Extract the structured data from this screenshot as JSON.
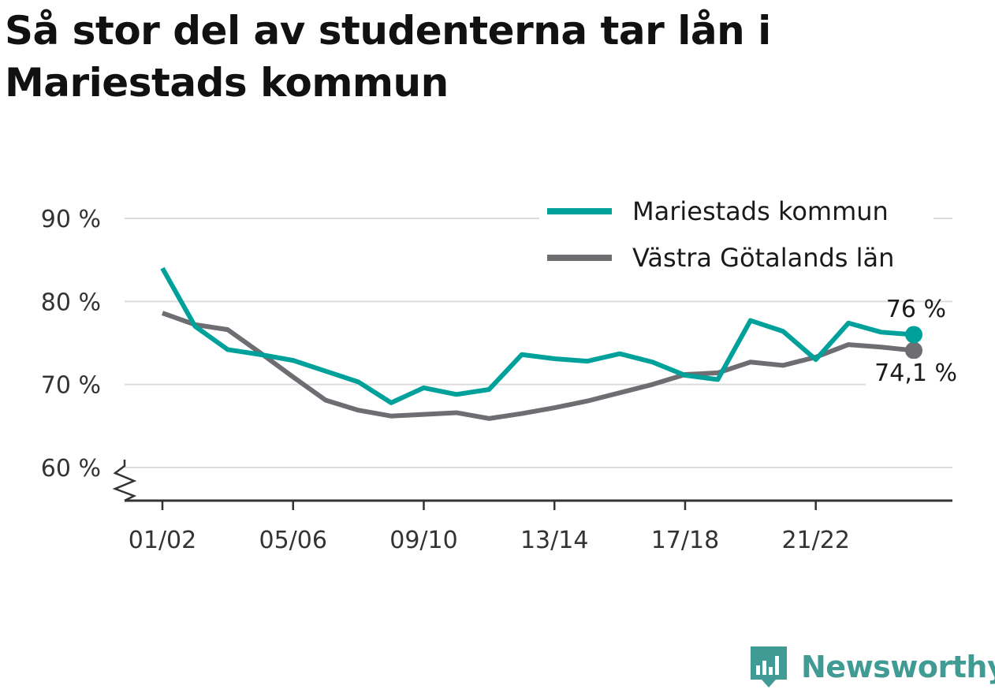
{
  "title": "Så stor del av studenterna tar lån i Mariestads kommun",
  "brand": {
    "name": "Newsworthy",
    "icon": "newsworthy-logo-icon"
  },
  "chart_data": {
    "type": "line",
    "title": "Så stor del av studenterna tar lån i Mariestads kommun",
    "xlabel": "",
    "ylabel": "",
    "x": [
      "01/02",
      "02/03",
      "03/04",
      "04/05",
      "05/06",
      "06/07",
      "07/08",
      "08/09",
      "09/10",
      "10/11",
      "11/12",
      "12/13",
      "13/14",
      "14/15",
      "15/16",
      "16/17",
      "17/18",
      "18/19",
      "19/20",
      "20/21",
      "21/22",
      "22/23",
      "23/24",
      "24/25"
    ],
    "x_tick_labels": [
      "01/02",
      "05/06",
      "09/10",
      "13/14",
      "17/18",
      "21/22"
    ],
    "y_ticks": [
      60,
      70,
      80,
      90
    ],
    "y_tick_labels": [
      "60 %",
      "70 %",
      "80 %",
      "90 %"
    ],
    "ylim": [
      56,
      92
    ],
    "y_axis_break": true,
    "grid": "horizontal",
    "legend_position": "top-right",
    "series": [
      {
        "name": "Mariestads kommun",
        "color": "#00a19a",
        "values": [
          84.0,
          77.0,
          74.2,
          73.6,
          72.9,
          71.6,
          70.3,
          67.8,
          69.6,
          68.8,
          69.4,
          73.6,
          73.1,
          72.8,
          73.7,
          72.7,
          71.1,
          70.6,
          77.7,
          76.4,
          73.0,
          77.4,
          76.3,
          76.0
        ],
        "end_label": "76 %"
      },
      {
        "name": "Västra Götalands län",
        "color": "#6e6d72",
        "values": [
          78.6,
          77.2,
          76.6,
          73.8,
          70.9,
          68.1,
          66.9,
          66.2,
          66.4,
          66.6,
          65.9,
          66.5,
          67.2,
          68.0,
          69.0,
          70.0,
          71.2,
          71.4,
          72.7,
          72.3,
          73.3,
          74.8,
          74.5,
          74.1
        ],
        "end_label": "74,1 %"
      }
    ]
  }
}
